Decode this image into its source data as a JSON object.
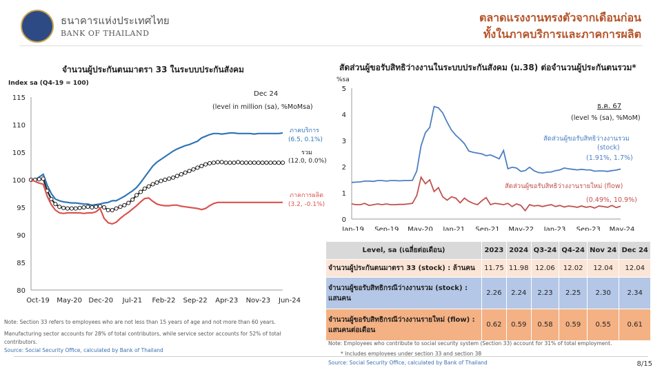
{
  "header": {
    "org_th": "ธนาคารแห่งประเทศไทย",
    "org_en": "BANK OF THAILAND",
    "title_line1": "ตลาดแรงงานทรงตัวจากเดือนก่อน",
    "title_line2": "ทั้งในภาคบริการและภาคการผลิต"
  },
  "left": {
    "title": "จำนวนผู้ประกันตนมาตรา 33 ในระบบประกันสังคม",
    "ylabel": "Index sa (Q4-19 = 100)",
    "ann_date": "Dec 24",
    "ann_unit": "(level in million (sa), %MoMsa)",
    "series_labels": [
      {
        "name": "ภาคบริการ",
        "value": "(6.5, 0.1%)"
      },
      {
        "name": "รวม",
        "value": "(12.0, 0.0%)"
      },
      {
        "name": "ภาคการผลิต",
        "value": "(3.2, -0.1%)"
      }
    ],
    "notes": [
      "Note: Section 33 refers to employees who are not less than 15 years of age and not more than 60 years.",
      "Manufacturing sector accounts for 28% of total contributors, while service sector accounts for 52% of total",
      "contributors."
    ],
    "source": "Source: Social Security Office, calculated by Bank of Thailand"
  },
  "right": {
    "title": "สัดส่วนผู้ขอรับสิทธิว่างงานในระบบประกันสังคม (ม.38) ต่อจำนวนผู้ประกันตนรวม*",
    "ylabel": "%sa",
    "ann_date": "ธ.ค. 67",
    "ann_unit": "(level % (sa), %MoM)",
    "series_labels": [
      {
        "name": "สัดส่วนผู้ขอรับสิทธิว่างงานรวม",
        "sub": "(stock)",
        "value": "(1.91%, 1.7%)"
      },
      {
        "name": "สัดส่วนผู้ขอรับสิทธิว่างงานรายใหม่ (flow)",
        "value": "(0.49%, 10.9%)"
      }
    ],
    "notes": [
      "Note: Employees who contribute to social security system (Section 33) account for 31% of total employment.",
      "* Includes employees under section 33 and section 38"
    ],
    "source": "Source: Social Security Office, calculated by Bank of Thailand"
  },
  "table": {
    "headers": [
      "Level, sa (เฉลี่ยต่อเดือน)",
      "2023",
      "2024",
      "Q3-24",
      "Q4-24",
      "Nov 24",
      "Dec 24"
    ],
    "rows": [
      {
        "label": "จำนวนผู้ประกันตนมาตรา 33 (stock) : ล้านคน",
        "values": [
          "11.75",
          "11.98",
          "12.06",
          "12.02",
          "12.04",
          "12.04"
        ]
      },
      {
        "label": "จำนวนผู้ขอรับสิทธิกรณีว่างงานรวม (stock) : แสนคน",
        "values": [
          "2.26",
          "2.24",
          "2.23",
          "2.25",
          "2.30",
          "2.34"
        ]
      },
      {
        "label": "จำนวนผู้ขอรับสิทธิกรณีว่างงานรายใหม่ (flow) : แสนคนต่อเดือน",
        "values": [
          "0.62",
          "0.59",
          "0.58",
          "0.59",
          "0.55",
          "0.61"
        ]
      }
    ]
  },
  "page": "8/15",
  "chart_data": [
    {
      "type": "line",
      "ylim": [
        80,
        115
      ],
      "yticks": [
        80,
        85,
        90,
        95,
        100,
        105,
        110,
        115
      ],
      "xtick_labels": [
        "Oct-19",
        "May-20",
        "Dec-20",
        "Jul-21",
        "Feb-22",
        "Sep-22",
        "Apr-23",
        "Nov-23",
        "Jun-24"
      ],
      "x_start": "Oct-19",
      "x_end": "Dec-24",
      "series": [
        {
          "name": "ภาคบริการ",
          "color": "#2e75b6",
          "values": [
            100,
            100,
            100.5,
            101,
            99,
            97.5,
            96.5,
            96.2,
            96,
            95.9,
            95.8,
            95.8,
            95.7,
            95.6,
            95.6,
            95.4,
            95.5,
            95.6,
            95.8,
            95.9,
            96.2,
            96.2,
            96.6,
            97,
            97.5,
            98,
            98.6,
            99.5,
            100.5,
            101.5,
            102.5,
            103.2,
            103.7,
            104.2,
            104.7,
            105.2,
            105.6,
            105.9,
            106.2,
            106.4,
            106.7,
            107,
            107.6,
            107.9,
            108.2,
            108.4,
            108.4,
            108.3,
            108.4,
            108.5,
            108.5,
            108.4,
            108.4,
            108.4,
            108.4,
            108.3,
            108.4,
            108.4,
            108.4,
            108.4,
            108.4,
            108.4,
            108.5
          ]
        },
        {
          "name": "รวม",
          "color": "#222222",
          "dotted": true,
          "values": [
            100,
            100,
            100.1,
            100.2,
            98,
            96.5,
            95.6,
            95.1,
            94.9,
            94.8,
            94.8,
            94.8,
            94.9,
            95,
            95.1,
            95,
            95.1,
            95.2,
            95,
            94.5,
            94.5,
            94.8,
            95.1,
            95.4,
            95.8,
            96.4,
            97.2,
            97.8,
            98.4,
            98.8,
            99.2,
            99.5,
            99.8,
            100,
            100.2,
            100.4,
            100.7,
            101,
            101.3,
            101.6,
            101.9,
            102.2,
            102.5,
            102.8,
            103,
            103.1,
            103.2,
            103.2,
            103.1,
            103.1,
            103.1,
            103.2,
            103.1,
            103.1,
            103.1,
            103.1,
            103.1,
            103.1,
            103.1,
            103.1,
            103.1,
            103.1,
            103.1
          ]
        },
        {
          "name": "ภาคการผลิต",
          "color": "#d9534f",
          "values": [
            100,
            99.7,
            99.4,
            99.2,
            97,
            95.5,
            94.5,
            94,
            93.9,
            94,
            94,
            94,
            94,
            93.9,
            94,
            94,
            94.2,
            94.8,
            93,
            92.2,
            92,
            92.3,
            93,
            93.6,
            94.1,
            94.7,
            95.3,
            96,
            96.6,
            96.7,
            96.1,
            95.6,
            95.4,
            95.3,
            95.3,
            95.4,
            95.4,
            95.2,
            95.1,
            95,
            94.9,
            94.8,
            94.6,
            94.8,
            95.3,
            95.7,
            95.9,
            95.9,
            95.9,
            95.9,
            95.9,
            95.9,
            95.9,
            95.9,
            95.9,
            95.9,
            95.9,
            95.9,
            95.9,
            95.9,
            95.9,
            95.9,
            95.9
          ]
        }
      ]
    },
    {
      "type": "line",
      "ylim": [
        0,
        5
      ],
      "yticks": [
        0,
        1,
        2,
        3,
        4,
        5
      ],
      "xtick_labels": [
        "Jan-19",
        "Sep-19",
        "May-20",
        "Jan-21",
        "Sep-21",
        "May-22",
        "Jan-23",
        "Sep-23",
        "May-24"
      ],
      "x_start": "Jan-19",
      "x_end": "Dec-24",
      "series": [
        {
          "name": "สัดส่วนผู้ขอรับสิทธิว่างงานรวม (stock)",
          "color": "#4a7ec2",
          "values": [
            1.4,
            1.41,
            1.42,
            1.45,
            1.45,
            1.44,
            1.47,
            1.47,
            1.45,
            1.47,
            1.47,
            1.46,
            1.47,
            1.47,
            1.48,
            1.84,
            2.8,
            3.3,
            3.5,
            4.3,
            4.25,
            4.05,
            3.7,
            3.4,
            3.2,
            3.05,
            2.88,
            2.6,
            2.55,
            2.52,
            2.49,
            2.42,
            2.45,
            2.38,
            2.3,
            2.62,
            1.92,
            1.98,
            1.95,
            1.82,
            1.85,
            1.98,
            1.85,
            1.78,
            1.76,
            1.79,
            1.8,
            1.85,
            1.88,
            1.95,
            1.92,
            1.9,
            1.88,
            1.9,
            1.88,
            1.88,
            1.83,
            1.84,
            1.84,
            1.82,
            1.85,
            1.87,
            1.91
          ]
        },
        {
          "name": "สัดส่วนผู้ขอรับสิทธิว่างงานรายใหม่ (flow)",
          "color": "#c0504d",
          "values": [
            0.58,
            0.55,
            0.55,
            0.6,
            0.52,
            0.55,
            0.58,
            0.55,
            0.58,
            0.55,
            0.55,
            0.56,
            0.56,
            0.58,
            0.6,
            0.9,
            1.6,
            1.35,
            1.5,
            1.05,
            1.2,
            0.85,
            0.72,
            0.85,
            0.8,
            0.62,
            0.8,
            0.68,
            0.6,
            0.55,
            0.7,
            0.82,
            0.55,
            0.6,
            0.58,
            0.55,
            0.6,
            0.48,
            0.58,
            0.52,
            0.32,
            0.55,
            0.5,
            0.52,
            0.48,
            0.52,
            0.55,
            0.48,
            0.52,
            0.46,
            0.5,
            0.48,
            0.45,
            0.5,
            0.45,
            0.48,
            0.42,
            0.5,
            0.48,
            0.45,
            0.52,
            0.44,
            0.49
          ]
        }
      ]
    }
  ]
}
